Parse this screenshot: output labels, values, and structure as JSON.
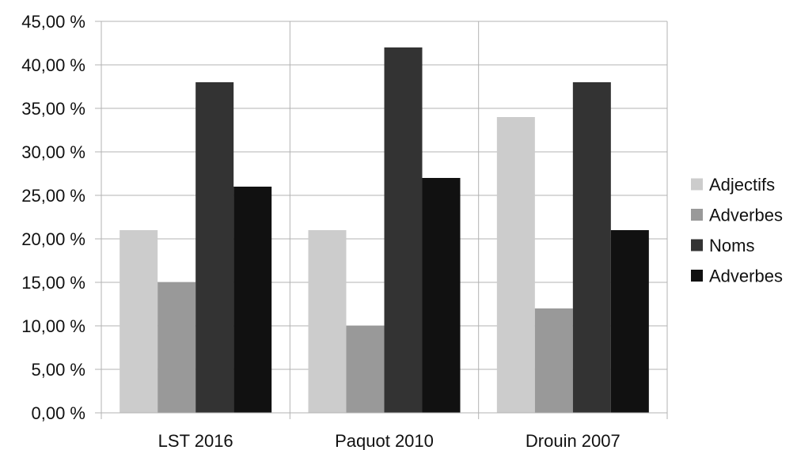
{
  "chart_data": {
    "type": "bar",
    "categories": [
      "LST 2016",
      "Paquot 2010",
      "Drouin 2007"
    ],
    "series": [
      {
        "name": "Adjectifs",
        "values": [
          21,
          21,
          34
        ],
        "color": "#cccccc"
      },
      {
        "name": "Adverbes",
        "values": [
          15,
          10,
          12
        ],
        "color": "#999999"
      },
      {
        "name": "Noms",
        "values": [
          38,
          42,
          38
        ],
        "color": "#333333"
      },
      {
        "name": "Adverbes",
        "values": [
          26,
          27,
          21
        ],
        "color": "#111111"
      }
    ],
    "ylim": [
      0,
      45
    ],
    "yticks": [
      0,
      5,
      10,
      15,
      20,
      25,
      30,
      35,
      40,
      45
    ],
    "ytick_labels": [
      "0,00 %",
      "5,00 %",
      "10,00 %",
      "15,00 %",
      "20,00 %",
      "25,00 %",
      "30,00 %",
      "35,00 %",
      "40,00 %",
      "45,00 %"
    ],
    "grid": true,
    "legend_position": "right",
    "title": "",
    "xlabel": "",
    "ylabel": ""
  }
}
